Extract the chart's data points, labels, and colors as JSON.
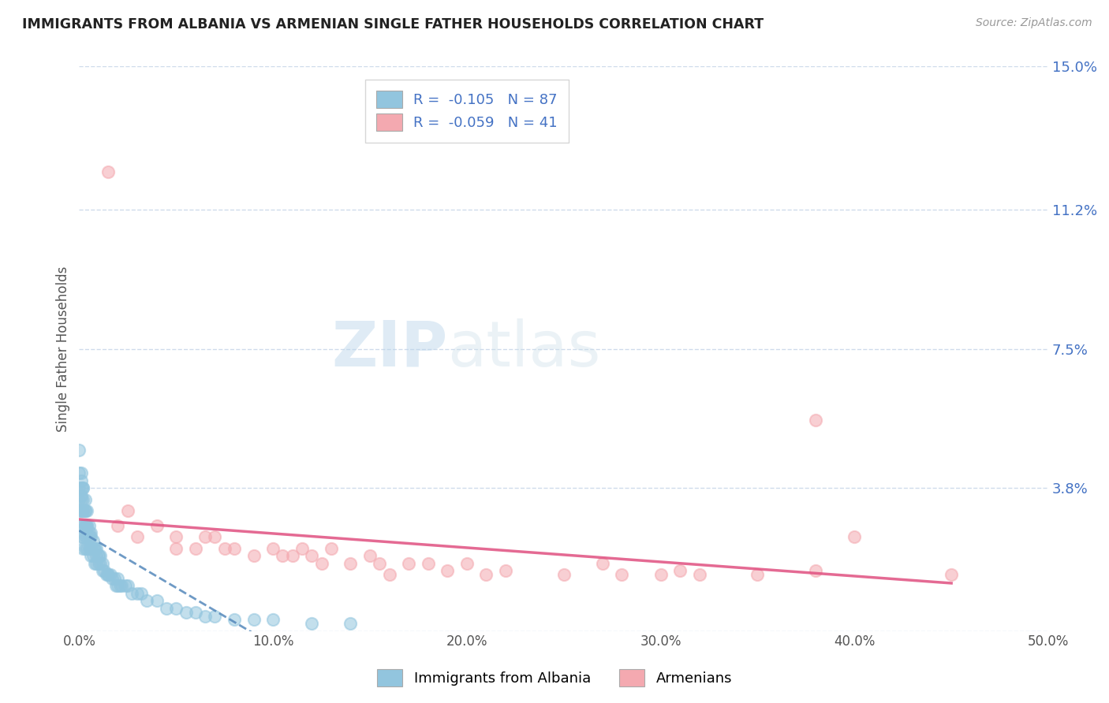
{
  "title": "IMMIGRANTS FROM ALBANIA VS ARMENIAN SINGLE FATHER HOUSEHOLDS CORRELATION CHART",
  "source": "Source: ZipAtlas.com",
  "ylabel": "Single Father Households",
  "xlim": [
    0.0,
    0.5
  ],
  "ylim": [
    0.0,
    0.15
  ],
  "yticks": [
    0.0,
    0.038,
    0.075,
    0.112,
    0.15
  ],
  "ytick_labels": [
    "",
    "3.8%",
    "7.5%",
    "11.2%",
    "15.0%"
  ],
  "xticks": [
    0.0,
    0.1,
    0.2,
    0.3,
    0.4,
    0.5
  ],
  "xtick_labels": [
    "0.0%",
    "10.0%",
    "20.0%",
    "30.0%",
    "40.0%",
    "50.0%"
  ],
  "legend_albania": "R =  -0.105   N = 87",
  "legend_armenian": "R =  -0.059   N = 41",
  "color_albania": "#92c5de",
  "color_armenian": "#f4a9b0",
  "trendline_albania_color": "#5588bb",
  "trendline_armenian_color": "#e05080",
  "background_color": "#ffffff",
  "albania_x": [
    0.001,
    0.001,
    0.001,
    0.001,
    0.001,
    0.001,
    0.002,
    0.002,
    0.002,
    0.002,
    0.002,
    0.002,
    0.003,
    0.003,
    0.003,
    0.003,
    0.003,
    0.004,
    0.004,
    0.004,
    0.004,
    0.005,
    0.005,
    0.005,
    0.006,
    0.006,
    0.006,
    0.007,
    0.007,
    0.008,
    0.008,
    0.009,
    0.009,
    0.01,
    0.01,
    0.011,
    0.012,
    0.013,
    0.014,
    0.015,
    0.016,
    0.017,
    0.018,
    0.019,
    0.02,
    0.021,
    0.022,
    0.024,
    0.025,
    0.027,
    0.03,
    0.032,
    0.035,
    0.04,
    0.045,
    0.05,
    0.055,
    0.06,
    0.065,
    0.07,
    0.08,
    0.09,
    0.1,
    0.12,
    0.14,
    0.0,
    0.0,
    0.0,
    0.0,
    0.0,
    0.001,
    0.001,
    0.002,
    0.002,
    0.003,
    0.003,
    0.004,
    0.005,
    0.006,
    0.007,
    0.008,
    0.009,
    0.01,
    0.011,
    0.012,
    0.015,
    0.02
  ],
  "albania_y": [
    0.042,
    0.038,
    0.035,
    0.032,
    0.028,
    0.025,
    0.038,
    0.035,
    0.032,
    0.028,
    0.025,
    0.022,
    0.035,
    0.032,
    0.028,
    0.025,
    0.022,
    0.032,
    0.028,
    0.025,
    0.022,
    0.028,
    0.025,
    0.022,
    0.025,
    0.022,
    0.02,
    0.022,
    0.02,
    0.022,
    0.018,
    0.02,
    0.018,
    0.02,
    0.018,
    0.018,
    0.016,
    0.016,
    0.015,
    0.015,
    0.015,
    0.014,
    0.014,
    0.012,
    0.014,
    0.012,
    0.012,
    0.012,
    0.012,
    0.01,
    0.01,
    0.01,
    0.008,
    0.008,
    0.006,
    0.006,
    0.005,
    0.005,
    0.004,
    0.004,
    0.003,
    0.003,
    0.003,
    0.002,
    0.002,
    0.048,
    0.042,
    0.038,
    0.035,
    0.032,
    0.04,
    0.036,
    0.038,
    0.032,
    0.032,
    0.028,
    0.028,
    0.026,
    0.026,
    0.024,
    0.022,
    0.022,
    0.02,
    0.02,
    0.018,
    0.015,
    0.012
  ],
  "armenian_x": [
    0.015,
    0.02,
    0.025,
    0.03,
    0.04,
    0.05,
    0.05,
    0.06,
    0.065,
    0.07,
    0.075,
    0.08,
    0.09,
    0.1,
    0.105,
    0.11,
    0.115,
    0.12,
    0.125,
    0.13,
    0.14,
    0.15,
    0.155,
    0.16,
    0.17,
    0.18,
    0.19,
    0.2,
    0.21,
    0.22,
    0.25,
    0.27,
    0.28,
    0.3,
    0.31,
    0.32,
    0.35,
    0.38,
    0.4,
    0.45,
    0.38
  ],
  "armenian_y": [
    0.122,
    0.028,
    0.032,
    0.025,
    0.028,
    0.025,
    0.022,
    0.022,
    0.025,
    0.025,
    0.022,
    0.022,
    0.02,
    0.022,
    0.02,
    0.02,
    0.022,
    0.02,
    0.018,
    0.022,
    0.018,
    0.02,
    0.018,
    0.015,
    0.018,
    0.018,
    0.016,
    0.018,
    0.015,
    0.016,
    0.015,
    0.018,
    0.015,
    0.015,
    0.016,
    0.015,
    0.015,
    0.016,
    0.025,
    0.015,
    0.056
  ],
  "grid_color": "#b0c4de",
  "grid_style": "--",
  "grid_alpha": 0.6
}
